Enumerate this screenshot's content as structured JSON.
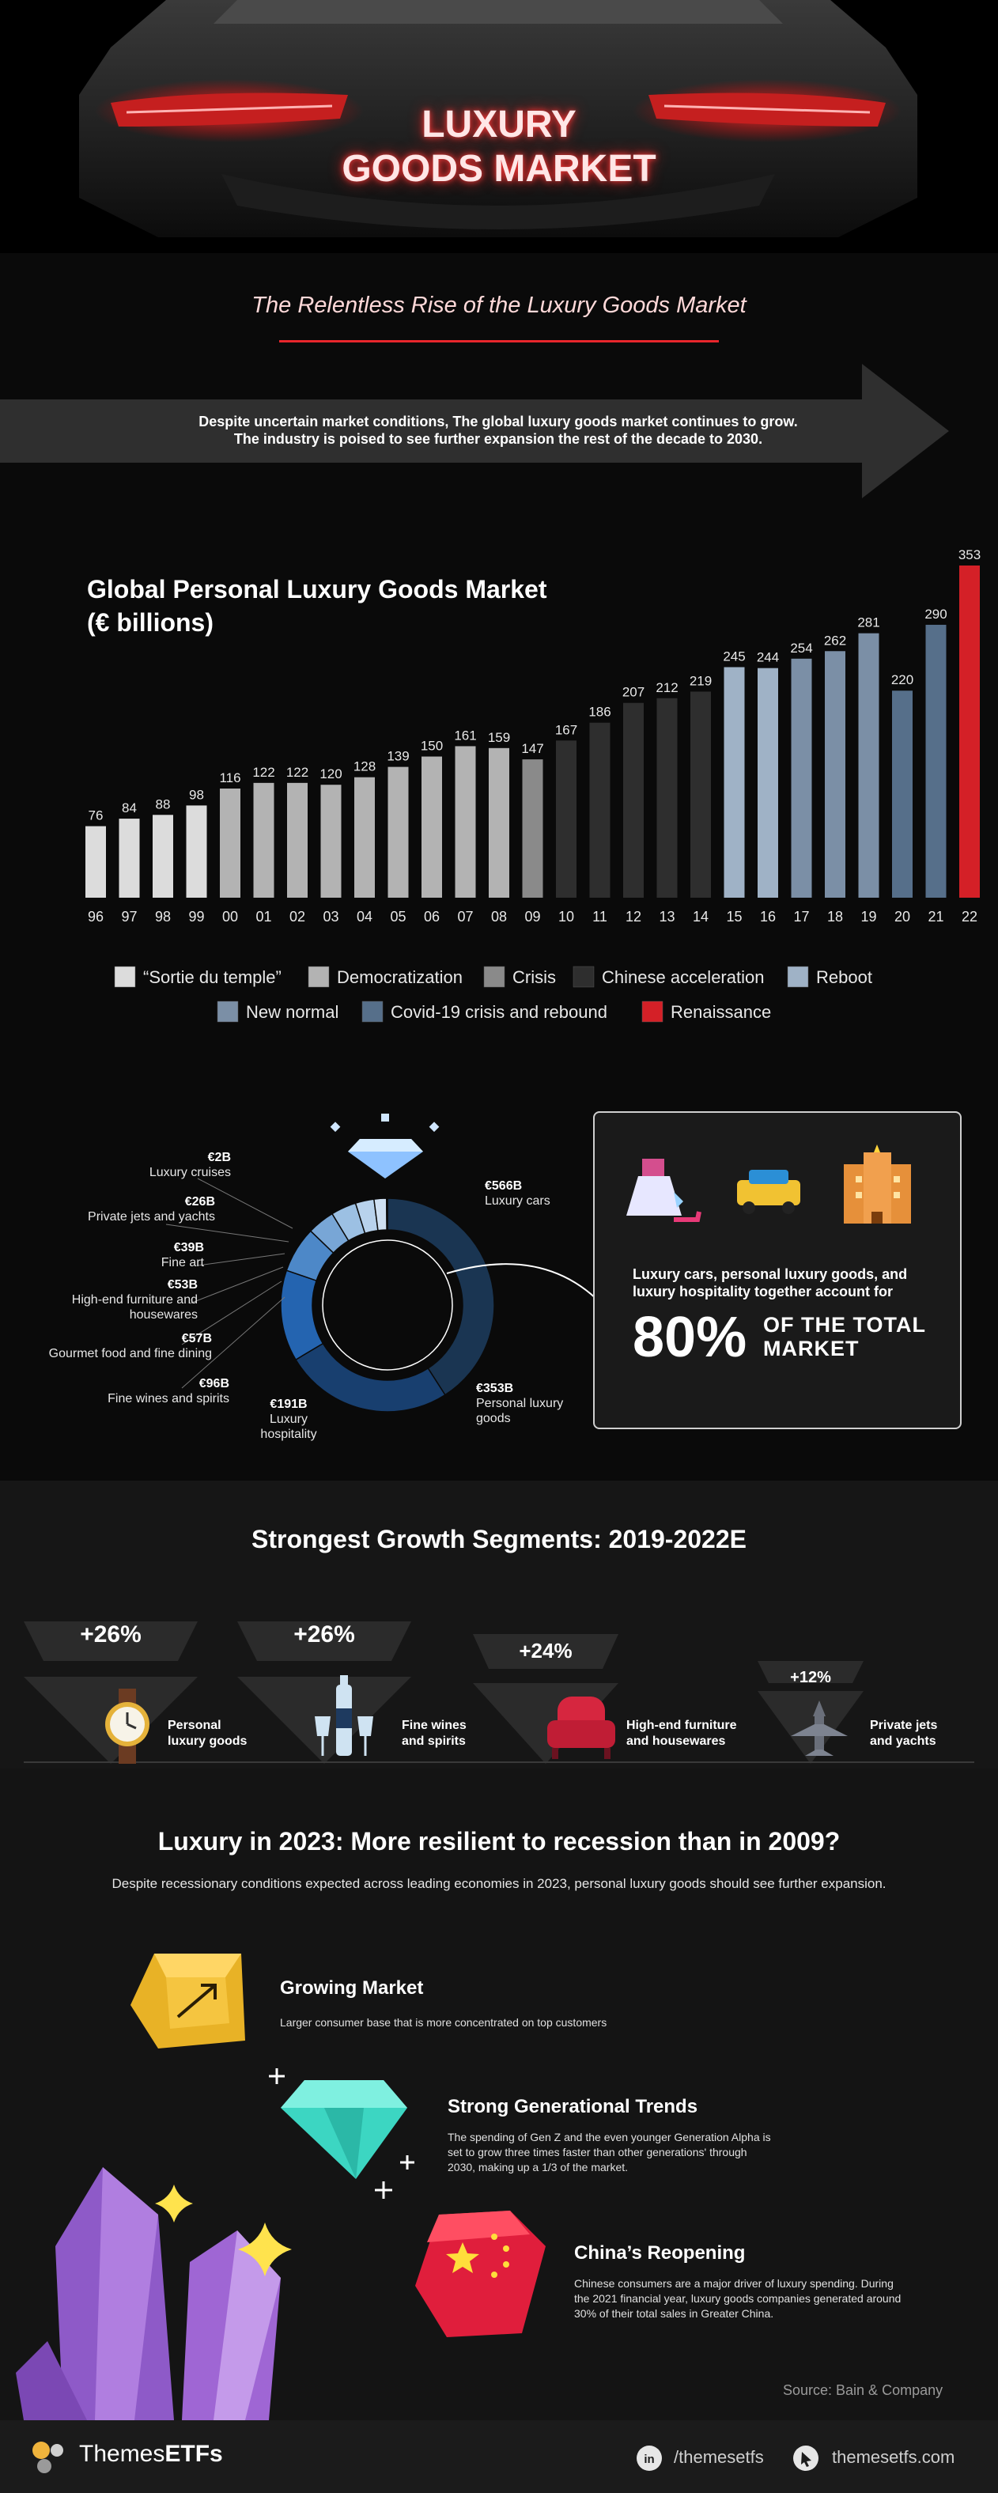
{
  "hero": {
    "title_line1": "LUXURY",
    "title_line2": "GOODS MARKET",
    "subtitle": "The Relentless Rise of the Luxury Goods Market",
    "arrow_line1": "Despite uncertain market conditions, The global luxury goods market continues to grow.",
    "arrow_line2": "The industry is poised to see further expansion the rest of the decade to 2030."
  },
  "colors": {
    "accent": "#e8262c",
    "background": "#0a0a0a"
  },
  "chart_data": [
    {
      "type": "bar",
      "title": "Global Personal Luxury Goods Market",
      "subtitle": "(€ billions)",
      "categories": [
        "96",
        "97",
        "98",
        "99",
        "00",
        "01",
        "02",
        "03",
        "04",
        "05",
        "06",
        "07",
        "08",
        "09",
        "10",
        "11",
        "12",
        "13",
        "14",
        "15",
        "16",
        "17",
        "18",
        "19",
        "20",
        "21",
        "22"
      ],
      "values": [
        76,
        84,
        88,
        98,
        116,
        122,
        122,
        120,
        128,
        139,
        150,
        161,
        159,
        147,
        167,
        186,
        207,
        212,
        219,
        245,
        244,
        254,
        262,
        281,
        220,
        290,
        353
      ],
      "eras": [
        0,
        0,
        0,
        0,
        1,
        1,
        1,
        1,
        1,
        1,
        1,
        1,
        1,
        2,
        3,
        3,
        3,
        3,
        3,
        4,
        4,
        5,
        5,
        5,
        6,
        6,
        7
      ],
      "legend": [
        {
          "name": "“Sortie du temple”",
          "color": "#dcdcdc"
        },
        {
          "name": "Democratization",
          "color": "#b3b3b3"
        },
        {
          "name": "Crisis",
          "color": "#8a8a8a"
        },
        {
          "name": "Chinese acceleration",
          "color": "#2e2e2e"
        },
        {
          "name": "Reboot",
          "color": "#9fb2c6"
        },
        {
          "name": "New normal",
          "color": "#7b8fa6"
        },
        {
          "name": "Covid-19 crisis and rebound",
          "color": "#566f8a"
        },
        {
          "name": "Renaissance",
          "color": "#d42027"
        }
      ],
      "ylim": [
        0,
        353
      ]
    },
    {
      "type": "pie",
      "slices": [
        {
          "label": "€566B",
          "sub": "Luxury cars",
          "value": 566,
          "color": "#1a3552"
        },
        {
          "label": "€353B",
          "sub": "Personal luxury goods",
          "value": 353,
          "color": "#183f6f"
        },
        {
          "label": "€191B",
          "sub": "Luxury hospitality",
          "value": 191,
          "color": "#2464b0"
        },
        {
          "label": "€96B",
          "sub": "Fine wines and spirits",
          "value": 96,
          "color": "#4d88c8"
        },
        {
          "label": "€57B",
          "sub": "Gourmet food and fine dining",
          "value": 57,
          "color": "#78a6d6"
        },
        {
          "label": "€53B",
          "sub": "High-end furniture and housewares",
          "value": 53,
          "color": "#9cc0e3"
        },
        {
          "label": "€39B",
          "sub": "Fine art",
          "value": 39,
          "color": "#b8d2ec"
        },
        {
          "label": "€26B",
          "sub": "Private jets and yachts",
          "value": 26,
          "color": "#cfe0f2"
        },
        {
          "label": "€2B",
          "sub": "Luxury cruises",
          "value": 2,
          "color": "#e6eef8"
        }
      ]
    }
  ],
  "callout": {
    "text": "Luxury cars, personal luxury goods, and luxury hospitality together account for",
    "big": "80%",
    "rest1": "OF THE TOTAL",
    "rest2": "MARKET"
  },
  "growth": {
    "title": "Strongest Growth Segments: 2019-2022E",
    "items": [
      {
        "pct": "+26%",
        "label1": "Personal",
        "label2": "luxury goods"
      },
      {
        "pct": "+26%",
        "label1": "Fine wines",
        "label2": "and spirits"
      },
      {
        "pct": "+24%",
        "label1": "High-end furniture",
        "label2": "and housewares"
      },
      {
        "pct": "+12%",
        "label1": "Private jets",
        "label2": "and yachts"
      }
    ]
  },
  "resilience": {
    "title": "Luxury in 2023: More resilient to recession than in 2009?",
    "intro": "Despite recessionary conditions expected across leading economies in 2023, personal luxury goods should see further expansion.",
    "items": [
      {
        "title": "Growing Market",
        "desc": "Larger consumer base that is more concentrated on top customers"
      },
      {
        "title": "Strong Generational Trends",
        "desc1": "The spending of Gen Z and the even younger Generation Alpha is",
        "desc2": "set to grow three times faster than other generations' through",
        "desc3": "2030, making up a 1/3 of the market."
      },
      {
        "title": "China’s Reopening",
        "desc1": "Chinese consumers are a major driver of luxury spending. During",
        "desc2": "the 2021 financial year, luxury goods companies generated around",
        "desc3": "30% of their total sales in Greater China."
      }
    ],
    "source": "Source: Bain & Company"
  },
  "footer": {
    "brand_a": "Themes",
    "brand_b": "ETFs",
    "social": "/themesetfs",
    "site": "themesetfs.com"
  }
}
